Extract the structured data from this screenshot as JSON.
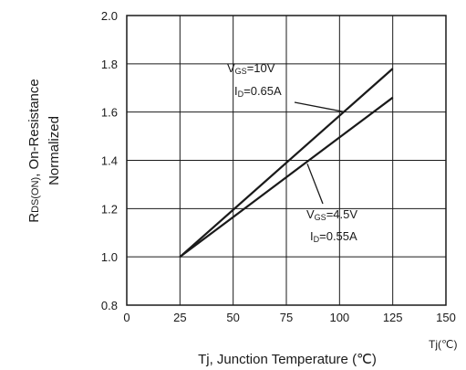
{
  "chart_data": {
    "type": "line",
    "title": "",
    "xlabel": "Tj, Junction Temperature (℃)",
    "x_unit_label": "Tj(℃)",
    "ylabel_line1": "R",
    "ylabel_sub": "DS(ON)",
    "ylabel_rest": ", On-Resistance",
    "ylabel_line2": "Normalized",
    "xlim": [
      0,
      150
    ],
    "ylim": [
      0.8,
      2.0
    ],
    "x_ticks": [
      "0",
      "25",
      "50",
      "75",
      "100",
      "125",
      "150"
    ],
    "y_ticks": [
      "0.8",
      "1.0",
      "1.2",
      "1.4",
      "1.6",
      "1.8",
      "2.0"
    ],
    "grid": true,
    "line_color": "#1a1a1a",
    "series": [
      {
        "x": [
          25,
          125
        ],
        "y": [
          1.0,
          1.78
        ],
        "annotation": {
          "line1_main": "V",
          "line1_sub": "GS",
          "line1_rest": "=10V",
          "line2_main": "I",
          "line2_sub": "D",
          "line2_rest": "=0.65A"
        }
      },
      {
        "x": [
          25,
          125
        ],
        "y": [
          1.0,
          1.66
        ],
        "annotation": {
          "line1_main": "V",
          "line1_sub": "GS",
          "line1_rest": "=4.5V",
          "line2_main": "I",
          "line2_sub": "D",
          "line2_rest": "=0.55A"
        }
      }
    ]
  }
}
